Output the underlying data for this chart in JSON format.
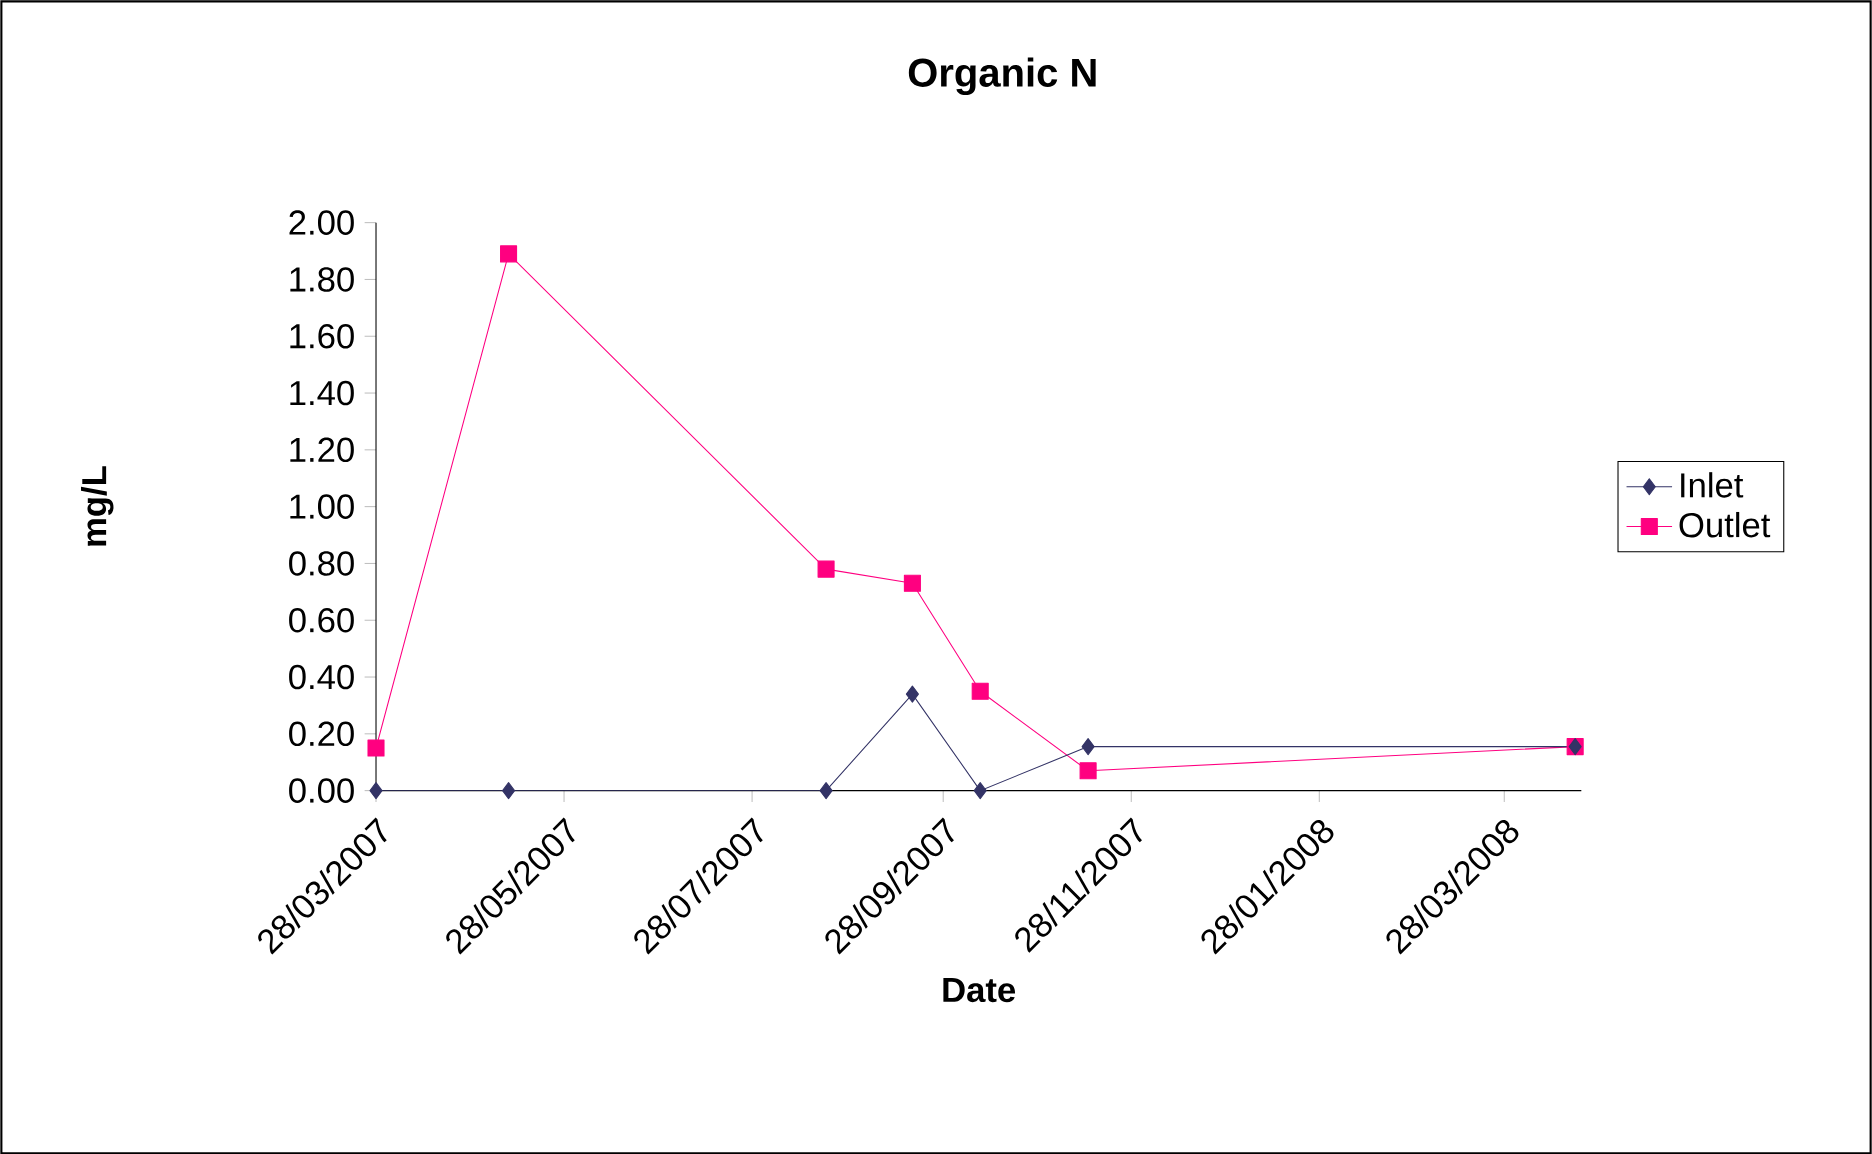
{
  "chart_data": {
    "type": "line",
    "title": "Organic N",
    "xlabel": "Date",
    "ylabel": "mg/L",
    "x": [
      "2007-03-28",
      "2007-05-10",
      "2007-08-21",
      "2007-09-18",
      "2007-10-10",
      "2007-11-14",
      "2008-04-20"
    ],
    "series": [
      {
        "name": "Inlet",
        "color": "#333366",
        "marker": "diamond",
        "values": [
          0,
          0,
          0,
          0.34,
          0,
          0.155,
          0.155
        ]
      },
      {
        "name": "Outlet",
        "color": "#ff0080",
        "marker": "square",
        "values": [
          0.15,
          1.89,
          0.78,
          0.73,
          0.35,
          0.07,
          0.155
        ]
      }
    ],
    "xlim": [
      "2007-03-28",
      "2008-04-22"
    ],
    "xticks": [
      {
        "value": "2007-03-28",
        "label": "28/03/2007"
      },
      {
        "value": "2007-05-28",
        "label": "28/05/2007"
      },
      {
        "value": "2007-07-28",
        "label": "28/07/2007"
      },
      {
        "value": "2007-09-28",
        "label": "28/09/2007"
      },
      {
        "value": "2007-11-28",
        "label": "28/11/2007"
      },
      {
        "value": "2008-01-28",
        "label": "28/01/2008"
      },
      {
        "value": "2008-03-28",
        "label": "28/03/2008"
      }
    ],
    "ylim": [
      0,
      2
    ],
    "yticks": [
      {
        "value": 0,
        "label": "0.00"
      },
      {
        "value": 0.2,
        "label": "0.20"
      },
      {
        "value": 0.4,
        "label": "0.40"
      },
      {
        "value": 0.6,
        "label": "0.60"
      },
      {
        "value": 0.8,
        "label": "0.80"
      },
      {
        "value": 1.0,
        "label": "1.00"
      },
      {
        "value": 1.2,
        "label": "1.20"
      },
      {
        "value": 1.4,
        "label": "1.40"
      },
      {
        "value": 1.6,
        "label": "1.60"
      },
      {
        "value": 1.8,
        "label": "1.80"
      },
      {
        "value": 2.0,
        "label": "2.00"
      }
    ],
    "grid": false,
    "legend": "right",
    "line_style": "solid"
  }
}
